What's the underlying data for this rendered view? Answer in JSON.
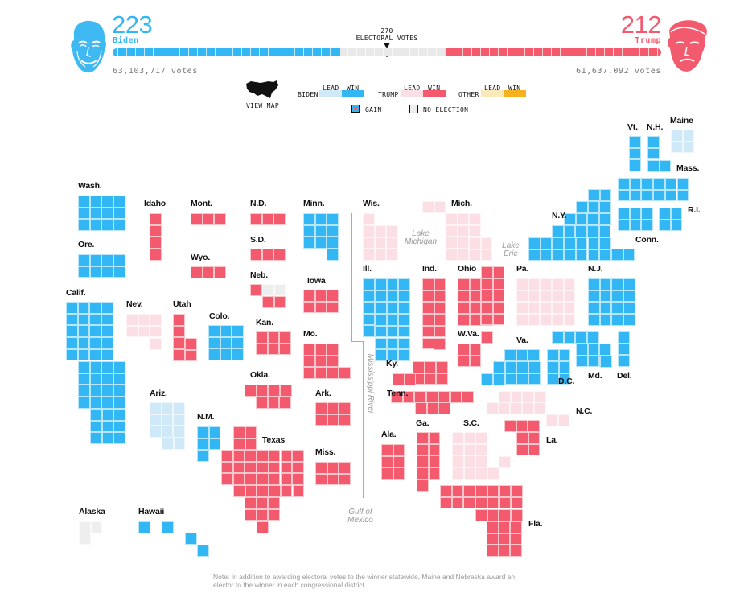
{
  "colors": {
    "biden_win": "#33b7f4",
    "biden_lead": "#cfe9f9",
    "trump_win": "#f45a6e",
    "trump_lead": "#fbdfe4",
    "other_lead": "#fbe9b8",
    "other_win": "#f5b21e",
    "no_election": "#eeeeee",
    "progress_track": "#e9e9e9"
  },
  "header": {
    "biden": {
      "ev": "223",
      "name": "Biden",
      "votes": "63,103,717 votes"
    },
    "trump": {
      "ev": "212",
      "name": "Trump",
      "votes": "61,637,092 votes"
    },
    "threshold": {
      "number": "270",
      "label": "ELECTORAL VOTES"
    },
    "progress": {
      "total_ev": 538,
      "biden_ev": 223,
      "trump_ev": 212
    }
  },
  "legend": {
    "view_map": "VIEW MAP",
    "lead": "LEAD",
    "win": "WIN",
    "biden": "BIDEN",
    "trump": "TRUMP",
    "other": "OTHER",
    "gain": "GAIN",
    "no_election": "NO ELECTION"
  },
  "states": [
    {
      "label": "Vt.",
      "status": "biden_win"
    },
    {
      "label": "N.H.",
      "status": "biden_win"
    },
    {
      "label": "Maine",
      "status": "biden_lead"
    },
    {
      "label": "Mass.",
      "status": "biden_win"
    },
    {
      "label": "Wash.",
      "status": "biden_win"
    },
    {
      "label": "Idaho",
      "status": "trump_win"
    },
    {
      "label": "Mont.",
      "status": "trump_win"
    },
    {
      "label": "N.D.",
      "status": "trump_win"
    },
    {
      "label": "Minn.",
      "status": "biden_win"
    },
    {
      "label": "Wis.",
      "status": "trump_lead"
    },
    {
      "label": "Mich.",
      "status": "trump_lead"
    },
    {
      "label": "N.Y.",
      "status": "biden_win"
    },
    {
      "label": "R.I.",
      "status": "biden_win"
    },
    {
      "label": "Ore.",
      "status": "biden_win"
    },
    {
      "label": "S.D.",
      "status": "trump_win"
    },
    {
      "label": "Conn.",
      "status": "biden_win"
    },
    {
      "label": "Wyo.",
      "status": "trump_win"
    },
    {
      "label": "Neb.",
      "status": "trump_win"
    },
    {
      "label": "Iowa",
      "status": "trump_win"
    },
    {
      "label": "Ill.",
      "status": "biden_win"
    },
    {
      "label": "Ind.",
      "status": "trump_win"
    },
    {
      "label": "Ohio",
      "status": "trump_win"
    },
    {
      "label": "Pa.",
      "status": "trump_lead"
    },
    {
      "label": "N.J.",
      "status": "biden_win"
    },
    {
      "label": "Calif.",
      "status": "biden_win"
    },
    {
      "label": "Nev.",
      "status": "trump_lead"
    },
    {
      "label": "Utah",
      "status": "trump_win"
    },
    {
      "label": "Colo.",
      "status": "biden_win"
    },
    {
      "label": "Kan.",
      "status": "trump_win"
    },
    {
      "label": "Mo.",
      "status": "trump_win"
    },
    {
      "label": "W.Va.",
      "status": "trump_win"
    },
    {
      "label": "Va.",
      "status": "biden_win"
    },
    {
      "label": "Md.",
      "status": "biden_win"
    },
    {
      "label": "Del.",
      "status": "biden_win"
    },
    {
      "label": "D.C.",
      "status": "biden_win"
    },
    {
      "label": "Ky.",
      "status": "trump_win"
    },
    {
      "label": "Okla.",
      "status": "trump_win"
    },
    {
      "label": "Ark.",
      "status": "trump_win"
    },
    {
      "label": "Ariz.",
      "status": "biden_lead"
    },
    {
      "label": "Tenn.",
      "status": "trump_win"
    },
    {
      "label": "N.C.",
      "status": "trump_lead"
    },
    {
      "label": "N.M.",
      "status": "biden_win"
    },
    {
      "label": "Texas",
      "status": "trump_win"
    },
    {
      "label": "Miss.",
      "status": "trump_win"
    },
    {
      "label": "Ala.",
      "status": "trump_win"
    },
    {
      "label": "Ga.",
      "status": "trump_lead"
    },
    {
      "label": "S.C.",
      "status": "trump_win"
    },
    {
      "label": "La.",
      "status": "trump_win"
    },
    {
      "label": "Alaska",
      "status": "no_election"
    },
    {
      "label": "Hawaii",
      "status": "biden_win"
    },
    {
      "label": "Fla.",
      "status": "trump_win"
    }
  ],
  "water": {
    "lake_michigan": "Lake\nMichigan",
    "lake_erie": "Lake\nErie",
    "mississippi": "Mississippi River",
    "gulf": "Gulf of\nMexico"
  },
  "note": "Note: In addition to awarding electoral votes to the winner statewide, Maine and Nebraska award an\nelector to the winner in each congressional district."
}
